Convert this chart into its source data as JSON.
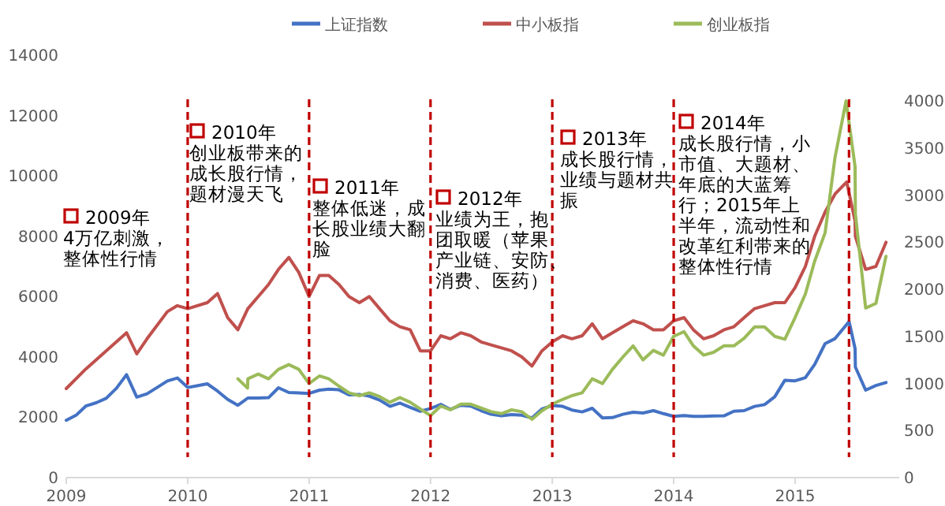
{
  "chart_data": {
    "type": "line",
    "legend": "top",
    "xlim": [
      "2009-01-01",
      "2015-11-10"
    ],
    "xticks": [
      {
        "value": "2009-01-01",
        "label": "2009"
      },
      {
        "value": "2010-01-01",
        "label": "2010"
      },
      {
        "value": "2011-01-01",
        "label": "2011"
      },
      {
        "value": "2012-01-01",
        "label": "2012"
      },
      {
        "value": "2013-01-01",
        "label": "2013"
      },
      {
        "value": "2014-01-01",
        "label": "2014"
      },
      {
        "value": "2015-01-01",
        "label": "2015"
      }
    ],
    "ylim": [
      0,
      14000
    ],
    "yticks": [
      0,
      2000,
      4000,
      6000,
      8000,
      10000,
      12000,
      14000
    ],
    "y2lim": [
      0,
      4000
    ],
    "y2ticks": [
      0,
      500,
      1000,
      1500,
      2000,
      2500,
      3000,
      3500,
      4000
    ],
    "series": [
      {
        "name": "上证指数",
        "color": "#4472c4",
        "x": [
          "2009-01",
          "2009-02",
          "2009-03",
          "2009-04",
          "2009-05",
          "2009-06",
          "2009-07",
          "2009-08",
          "2009-09",
          "2009-10",
          "2009-11",
          "2009-12",
          "2010-01",
          "2010-02",
          "2010-03",
          "2010-04",
          "2010-05",
          "2010-06",
          "2010-07",
          "2010-08",
          "2010-09",
          "2010-10",
          "2010-11",
          "2010-12",
          "2011-01",
          "2011-02",
          "2011-03",
          "2011-04",
          "2011-05",
          "2011-06",
          "2011-07",
          "2011-08",
          "2011-09",
          "2011-10",
          "2011-11",
          "2011-12",
          "2012-01",
          "2012-02",
          "2012-03",
          "2012-04",
          "2012-05",
          "2012-06",
          "2012-07",
          "2012-08",
          "2012-09",
          "2012-10",
          "2012-11",
          "2012-12",
          "2013-01",
          "2013-02",
          "2013-03",
          "2013-04",
          "2013-05",
          "2013-06",
          "2013-07",
          "2013-08",
          "2013-09",
          "2013-10",
          "2013-11",
          "2013-12",
          "2014-01",
          "2014-02",
          "2014-03",
          "2014-04",
          "2014-05",
          "2014-06",
          "2014-07",
          "2014-08",
          "2014-09",
          "2014-10",
          "2014-11",
          "2014-12",
          "2015-01",
          "2015-02",
          "2015-03",
          "2015-04",
          "2015-05",
          "2015-06-12",
          "2015-06-30",
          "2015-07",
          "2015-08",
          "2015-09",
          "2015-10"
        ],
        "values": [
          1900,
          2080,
          2370,
          2480,
          2630,
          2960,
          3410,
          2670,
          2780,
          2990,
          3200,
          3300,
          2990,
          3050,
          3110,
          2870,
          2590,
          2400,
          2640,
          2640,
          2650,
          2980,
          2820,
          2810,
          2790,
          2900,
          2930,
          2910,
          2740,
          2760,
          2700,
          2570,
          2360,
          2470,
          2330,
          2200,
          2290,
          2430,
          2260,
          2400,
          2370,
          2220,
          2100,
          2050,
          2090,
          2070,
          1980,
          2270,
          2390,
          2360,
          2240,
          2180,
          2300,
          1980,
          1990,
          2100,
          2170,
          2140,
          2220,
          2120,
          2030,
          2060,
          2030,
          2030,
          2040,
          2050,
          2200,
          2220,
          2360,
          2420,
          2680,
          3230,
          3210,
          3310,
          3750,
          4440,
          4610,
          5170,
          4280,
          3660,
          2900,
          3050,
          3150
        ]
      },
      {
        "name": "中小板指",
        "color": "#c0504d",
        "x": [
          "2009-01",
          "2009-03",
          "2009-05",
          "2009-07",
          "2009-08",
          "2009-09",
          "2009-11",
          "2009-12",
          "2010-01",
          "2010-03",
          "2010-04",
          "2010-05",
          "2010-06",
          "2010-07",
          "2010-08",
          "2010-09",
          "2010-10",
          "2010-11",
          "2010-12",
          "2011-01",
          "2011-02",
          "2011-03",
          "2011-04",
          "2011-05",
          "2011-06",
          "2011-07",
          "2011-08",
          "2011-09",
          "2011-10",
          "2011-11",
          "2011-12",
          "2012-01",
          "2012-02",
          "2012-03",
          "2012-04",
          "2012-05",
          "2012-06",
          "2012-07",
          "2012-08",
          "2012-09",
          "2012-10",
          "2012-11",
          "2012-12",
          "2013-01",
          "2013-02",
          "2013-03",
          "2013-04",
          "2013-05",
          "2013-06",
          "2013-07",
          "2013-08",
          "2013-09",
          "2013-10",
          "2013-11",
          "2013-12",
          "2014-01",
          "2014-02",
          "2014-03",
          "2014-04",
          "2014-05",
          "2014-06",
          "2014-07",
          "2014-08",
          "2014-09",
          "2014-10",
          "2014-11",
          "2014-12",
          "2015-01",
          "2015-02",
          "2015-03",
          "2015-04",
          "2015-05",
          "2015-06-05",
          "2015-06-30",
          "2015-07",
          "2015-08",
          "2015-09",
          "2015-10"
        ],
        "values": [
          2950,
          3600,
          4200,
          4800,
          4100,
          4600,
          5500,
          5700,
          5600,
          5800,
          6100,
          5300,
          4900,
          5600,
          6000,
          6400,
          6900,
          7300,
          6800,
          6000,
          6700,
          6700,
          6400,
          6000,
          5800,
          6000,
          5600,
          5200,
          5000,
          4900,
          4200,
          4200,
          4700,
          4600,
          4800,
          4700,
          4500,
          4400,
          4300,
          4200,
          4000,
          3700,
          4200,
          4500,
          4700,
          4600,
          4700,
          5100,
          4600,
          4800,
          5000,
          5200,
          5100,
          4900,
          4900,
          5200,
          5300,
          4900,
          4600,
          4700,
          4900,
          5000,
          5300,
          5600,
          5700,
          5800,
          5800,
          6300,
          7000,
          8000,
          8800,
          9400,
          9800,
          8500,
          8000,
          6900,
          7000,
          7800
        ]
      },
      {
        "name": "创业板指",
        "color": "#9bbb59",
        "axis": "y2",
        "x": [
          "2010-06-01",
          "2010-06-30",
          "2010-07",
          "2010-08",
          "2010-09",
          "2010-10",
          "2010-11",
          "2010-12",
          "2011-01",
          "2011-02",
          "2011-03",
          "2011-04",
          "2011-05",
          "2011-06",
          "2011-07",
          "2011-08",
          "2011-09",
          "2011-10",
          "2011-11",
          "2011-12",
          "2012-01",
          "2012-02",
          "2012-03",
          "2012-04",
          "2012-05",
          "2012-06",
          "2012-07",
          "2012-08",
          "2012-09",
          "2012-10",
          "2012-11",
          "2012-12",
          "2013-01",
          "2013-02",
          "2013-03",
          "2013-04",
          "2013-05",
          "2013-06",
          "2013-07",
          "2013-08",
          "2013-09",
          "2013-10",
          "2013-11",
          "2013-12",
          "2014-01",
          "2014-02",
          "2014-03",
          "2014-04",
          "2014-05",
          "2014-06",
          "2014-07",
          "2014-08",
          "2014-09",
          "2014-10",
          "2014-11",
          "2014-12",
          "2015-01",
          "2015-02",
          "2015-03",
          "2015-04",
          "2015-05",
          "2015-06-03",
          "2015-06-30",
          "2015-07",
          "2015-08",
          "2015-09",
          "2015-10"
        ],
        "values": [
          1050,
          950,
          1050,
          1100,
          1050,
          1150,
          1200,
          1150,
          1000,
          1080,
          1050,
          970,
          900,
          870,
          900,
          860,
          800,
          850,
          800,
          730,
          660,
          760,
          720,
          780,
          780,
          740,
          700,
          680,
          720,
          700,
          620,
          710,
          780,
          830,
          870,
          900,
          1050,
          1000,
          1150,
          1280,
          1400,
          1250,
          1350,
          1300,
          1500,
          1550,
          1400,
          1300,
          1330,
          1400,
          1400,
          1480,
          1600,
          1600,
          1500,
          1470,
          1700,
          1950,
          2300,
          2600,
          3400,
          4000,
          3300,
          2800,
          1800,
          1850,
          2350
        ]
      }
    ],
    "ref_lines": [
      {
        "axis": "x",
        "value": "2010-01-01",
        "label": null,
        "color": "#c00000",
        "line_style": "dashed"
      },
      {
        "axis": "x",
        "value": "2011-01-01",
        "label": null,
        "color": "#c00000",
        "line_style": "dashed"
      },
      {
        "axis": "x",
        "value": "2012-01-01",
        "label": null,
        "color": "#c00000",
        "line_style": "dashed"
      },
      {
        "axis": "x",
        "value": "2013-01-01",
        "label": null,
        "color": "#c00000",
        "line_style": "dashed"
      },
      {
        "axis": "x",
        "value": "2014-01-01",
        "label": null,
        "color": "#c00000",
        "line_style": "dashed"
      },
      {
        "axis": "x",
        "value": "2015-06-12",
        "label": null,
        "color": "#c00000",
        "line_style": "dashed"
      }
    ],
    "annotations": [
      "2009年4万亿刺激，整体性行情",
      "2010年创业板带来的成长股行情，题材漫天飞",
      "2011年整体低迷，成长股业绩大翻脸",
      "2012年业绩为王，抱团取暖（苹果产业链、安防、消费、医药）",
      "2013年成长股行情，业绩与题材共振",
      "2014年成长股行情，小市值、大题材、年底的大蓝筹行；2015年上半年，流动性和改革红利带来的整体性行情"
    ]
  }
}
